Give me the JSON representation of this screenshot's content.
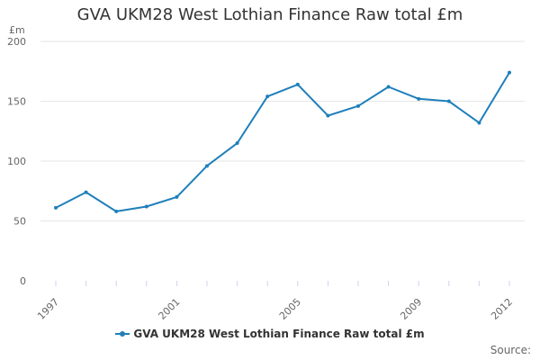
{
  "colors": {
    "series": "#1f7fba",
    "grid": "#e6e6e6",
    "axis": "#ccd6eb"
  },
  "legend": {
    "position": "bottom-center"
  },
  "credits": {
    "label": "Source:"
  },
  "chart_data": {
    "type": "line",
    "title": "GVA UKM28 West Lothian Finance Raw total £m",
    "ylabel": "£m",
    "xlabel": "",
    "ylim": [
      0,
      200
    ],
    "yticks": [
      "0",
      "50",
      "100",
      "150",
      "200"
    ],
    "xticks": [
      "1997",
      "2001",
      "2005",
      "2009",
      "2012"
    ],
    "grid": true,
    "x": [
      1997,
      1998,
      1999,
      2000,
      2001,
      2002,
      2003,
      2004,
      2005,
      2006,
      2007,
      2008,
      2009,
      2010,
      2011,
      2012
    ],
    "series": [
      {
        "name": "GVA UKM28 West Lothian Finance Raw total £m",
        "values": [
          61,
          74,
          58,
          62,
          70,
          96,
          115,
          154,
          164,
          138,
          146,
          162,
          152,
          150,
          132,
          174
        ]
      }
    ]
  }
}
